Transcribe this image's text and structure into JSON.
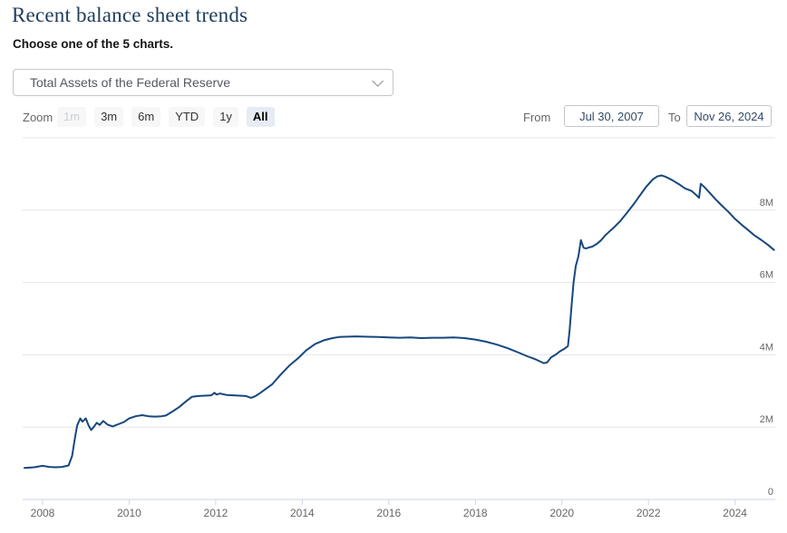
{
  "page": {
    "title": "Recent balance sheet trends",
    "subtitle": "Choose one of the 5 charts."
  },
  "chart_selector": {
    "selected_option": "Total Assets of the Federal Reserve"
  },
  "range_controls": {
    "zoom_label": "Zoom",
    "buttons": [
      {
        "label": "1m",
        "state": "disabled"
      },
      {
        "label": "3m",
        "state": "normal"
      },
      {
        "label": "6m",
        "state": "normal"
      },
      {
        "label": "YTD",
        "state": "normal"
      },
      {
        "label": "1y",
        "state": "normal"
      },
      {
        "label": "All",
        "state": "selected"
      }
    ],
    "from_label": "From",
    "from_value": "Jul 30, 2007",
    "to_label": "To",
    "to_value": "Nov 26, 2024"
  },
  "colors": {
    "line": "#16477e",
    "gridline": "#e6e6e6",
    "axis_line": "#ccd6eb",
    "tick_label": "#666666",
    "title": "#1e3d5a",
    "selected_button_bg": "#e6ebf5"
  },
  "chart_data": {
    "type": "line",
    "title": "Recent balance sheet trends",
    "legend": "none",
    "grid": "horizontal-only",
    "y_axis_side": "right",
    "x_range": [
      2007.55,
      2024.95
    ],
    "y_range": [
      0,
      10
    ],
    "x_ticks": [
      2008,
      2010,
      2012,
      2014,
      2016,
      2018,
      2020,
      2022,
      2024
    ],
    "y_ticks": [
      {
        "value": 0,
        "label": "0"
      },
      {
        "value": 2,
        "label": "2M"
      },
      {
        "value": 4,
        "label": "4M"
      },
      {
        "value": 6,
        "label": "6M"
      },
      {
        "value": 8,
        "label": "8M"
      },
      {
        "value": 10,
        "label": ""
      }
    ],
    "series": [
      {
        "name": "Total Assets of the Federal Reserve",
        "unit_suffix": "M",
        "x": [
          2007.58,
          2007.8,
          2008.0,
          2008.15,
          2008.3,
          2008.45,
          2008.6,
          2008.68,
          2008.72,
          2008.76,
          2008.8,
          2008.87,
          2008.92,
          2009.0,
          2009.06,
          2009.12,
          2009.18,
          2009.25,
          2009.32,
          2009.4,
          2009.5,
          2009.62,
          2009.75,
          2009.88,
          2010.0,
          2010.15,
          2010.3,
          2010.45,
          2010.6,
          2010.75,
          2010.85,
          2011.0,
          2011.15,
          2011.3,
          2011.45,
          2011.6,
          2011.75,
          2011.9,
          2011.97,
          2012.02,
          2012.1,
          2012.25,
          2012.4,
          2012.55,
          2012.7,
          2012.82,
          2012.92,
          2013.0,
          2013.15,
          2013.3,
          2013.5,
          2013.7,
          2013.9,
          2014.1,
          2014.3,
          2014.5,
          2014.7,
          2014.85,
          2015.0,
          2015.25,
          2015.5,
          2015.75,
          2016.0,
          2016.25,
          2016.5,
          2016.75,
          2017.0,
          2017.25,
          2017.5,
          2017.75,
          2018.0,
          2018.25,
          2018.5,
          2018.75,
          2019.0,
          2019.2,
          2019.4,
          2019.58,
          2019.66,
          2019.75,
          2019.85,
          2019.95,
          2020.05,
          2020.14,
          2020.18,
          2020.22,
          2020.27,
          2020.32,
          2020.38,
          2020.44,
          2020.5,
          2020.56,
          2020.63,
          2020.7,
          2020.8,
          2020.9,
          2021.0,
          2021.1,
          2021.2,
          2021.35,
          2021.5,
          2021.65,
          2021.8,
          2021.95,
          2022.1,
          2022.2,
          2022.3,
          2022.4,
          2022.55,
          2022.7,
          2022.85,
          2023.0,
          2023.1,
          2023.17,
          2023.21,
          2023.3,
          2023.4,
          2023.55,
          2023.7,
          2023.85,
          2024.0,
          2024.15,
          2024.3,
          2024.45,
          2024.6,
          2024.75,
          2024.9
        ],
        "values": [
          0.87,
          0.89,
          0.93,
          0.9,
          0.89,
          0.9,
          0.94,
          1.2,
          1.5,
          1.8,
          2.05,
          2.24,
          2.15,
          2.24,
          2.05,
          1.92,
          2.0,
          2.12,
          2.06,
          2.17,
          2.07,
          2.02,
          2.08,
          2.14,
          2.24,
          2.3,
          2.33,
          2.3,
          2.29,
          2.3,
          2.32,
          2.43,
          2.55,
          2.7,
          2.84,
          2.86,
          2.87,
          2.88,
          2.95,
          2.9,
          2.93,
          2.89,
          2.88,
          2.87,
          2.86,
          2.81,
          2.86,
          2.92,
          3.05,
          3.18,
          3.45,
          3.7,
          3.9,
          4.13,
          4.3,
          4.4,
          4.46,
          4.49,
          4.5,
          4.51,
          4.5,
          4.49,
          4.48,
          4.47,
          4.48,
          4.46,
          4.47,
          4.47,
          4.48,
          4.46,
          4.42,
          4.36,
          4.28,
          4.18,
          4.06,
          3.96,
          3.87,
          3.77,
          3.79,
          3.93,
          4.0,
          4.09,
          4.16,
          4.24,
          4.7,
          5.3,
          6.0,
          6.45,
          6.72,
          7.17,
          6.96,
          6.94,
          6.97,
          6.99,
          7.06,
          7.16,
          7.3,
          7.41,
          7.52,
          7.7,
          7.92,
          8.15,
          8.4,
          8.65,
          8.85,
          8.93,
          8.96,
          8.92,
          8.83,
          8.72,
          8.6,
          8.53,
          8.42,
          8.34,
          8.73,
          8.63,
          8.5,
          8.3,
          8.12,
          7.95,
          7.76,
          7.6,
          7.45,
          7.3,
          7.18,
          7.05,
          6.9
        ]
      }
    ]
  }
}
